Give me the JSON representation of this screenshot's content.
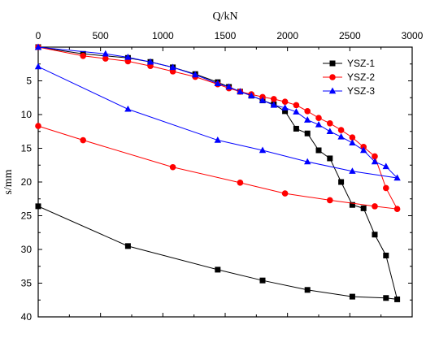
{
  "chart_data": {
    "type": "line",
    "xlabel": "Q/kN",
    "ylabel": "s/mm",
    "xlim": [
      0,
      3000
    ],
    "ylim": [
      0,
      40
    ],
    "x_axis_position": "top",
    "y_inverted": true,
    "xticks": [
      "0",
      "500",
      "1000",
      "1500",
      "2000",
      "2500",
      "3000"
    ],
    "yticks": [
      "5",
      "10",
      "15",
      "20",
      "25",
      "30",
      "35",
      "40"
    ],
    "legend_position": "top-right",
    "series": [
      {
        "name": "YSZ-1",
        "color": "#000000",
        "marker": "square",
        "points": [
          [
            0,
            0
          ],
          [
            360,
            1.0
          ],
          [
            720,
            1.6
          ],
          [
            900,
            2.2
          ],
          [
            1080,
            3.0
          ],
          [
            1260,
            4.0
          ],
          [
            1440,
            5.2
          ],
          [
            1530,
            5.9
          ],
          [
            1620,
            6.6
          ],
          [
            1710,
            7.2
          ],
          [
            1800,
            7.9
          ],
          [
            1890,
            8.5
          ],
          [
            1980,
            9.5
          ],
          [
            2070,
            12.1
          ],
          [
            2160,
            12.8
          ],
          [
            2250,
            15.3
          ],
          [
            2340,
            16.5
          ],
          [
            2430,
            20.0
          ],
          [
            2520,
            23.4
          ],
          [
            2610,
            23.9
          ],
          [
            2700,
            27.8
          ],
          [
            2790,
            30.9
          ],
          [
            2880,
            37.4
          ],
          [
            2790,
            37.2
          ],
          [
            2520,
            37.0
          ],
          [
            2160,
            36.0
          ],
          [
            1800,
            34.6
          ],
          [
            1440,
            33.0
          ],
          [
            720,
            29.5
          ],
          [
            0,
            23.6
          ]
        ]
      },
      {
        "name": "YSZ-2",
        "color": "#ff0000",
        "marker": "circle",
        "points": [
          [
            0,
            0
          ],
          [
            360,
            1.3
          ],
          [
            540,
            1.7
          ],
          [
            720,
            2.1
          ],
          [
            900,
            2.8
          ],
          [
            1080,
            3.6
          ],
          [
            1260,
            4.4
          ],
          [
            1440,
            5.5
          ],
          [
            1530,
            6.1
          ],
          [
            1620,
            6.6
          ],
          [
            1710,
            7.0
          ],
          [
            1800,
            7.4
          ],
          [
            1890,
            7.7
          ],
          [
            1980,
            8.1
          ],
          [
            2070,
            8.6
          ],
          [
            2160,
            9.5
          ],
          [
            2250,
            10.5
          ],
          [
            2340,
            11.3
          ],
          [
            2430,
            12.3
          ],
          [
            2520,
            13.4
          ],
          [
            2610,
            14.8
          ],
          [
            2700,
            16.2
          ],
          [
            2790,
            20.9
          ],
          [
            2880,
            24.0
          ],
          [
            2700,
            23.6
          ],
          [
            2340,
            22.7
          ],
          [
            1980,
            21.7
          ],
          [
            1620,
            20.1
          ],
          [
            1080,
            17.8
          ],
          [
            360,
            13.8
          ],
          [
            0,
            11.7
          ]
        ]
      },
      {
        "name": "YSZ-3",
        "color": "#0000ff",
        "marker": "triangle",
        "points": [
          [
            0,
            0
          ],
          [
            540,
            1.0
          ],
          [
            720,
            1.5
          ],
          [
            900,
            2.2
          ],
          [
            1080,
            3.0
          ],
          [
            1260,
            4.1
          ],
          [
            1440,
            5.4
          ],
          [
            1530,
            5.9
          ],
          [
            1620,
            6.6
          ],
          [
            1710,
            7.2
          ],
          [
            1800,
            7.9
          ],
          [
            1890,
            8.6
          ],
          [
            1980,
            9.0
          ],
          [
            2070,
            9.6
          ],
          [
            2160,
            10.8
          ],
          [
            2250,
            11.5
          ],
          [
            2340,
            12.5
          ],
          [
            2430,
            13.3
          ],
          [
            2520,
            14.2
          ],
          [
            2610,
            15.3
          ],
          [
            2700,
            17.0
          ],
          [
            2790,
            17.7
          ],
          [
            2880,
            19.4
          ],
          [
            2520,
            18.4
          ],
          [
            2160,
            17.0
          ],
          [
            1800,
            15.3
          ],
          [
            1440,
            13.8
          ],
          [
            720,
            9.2
          ],
          [
            0,
            2.9
          ]
        ]
      }
    ]
  }
}
